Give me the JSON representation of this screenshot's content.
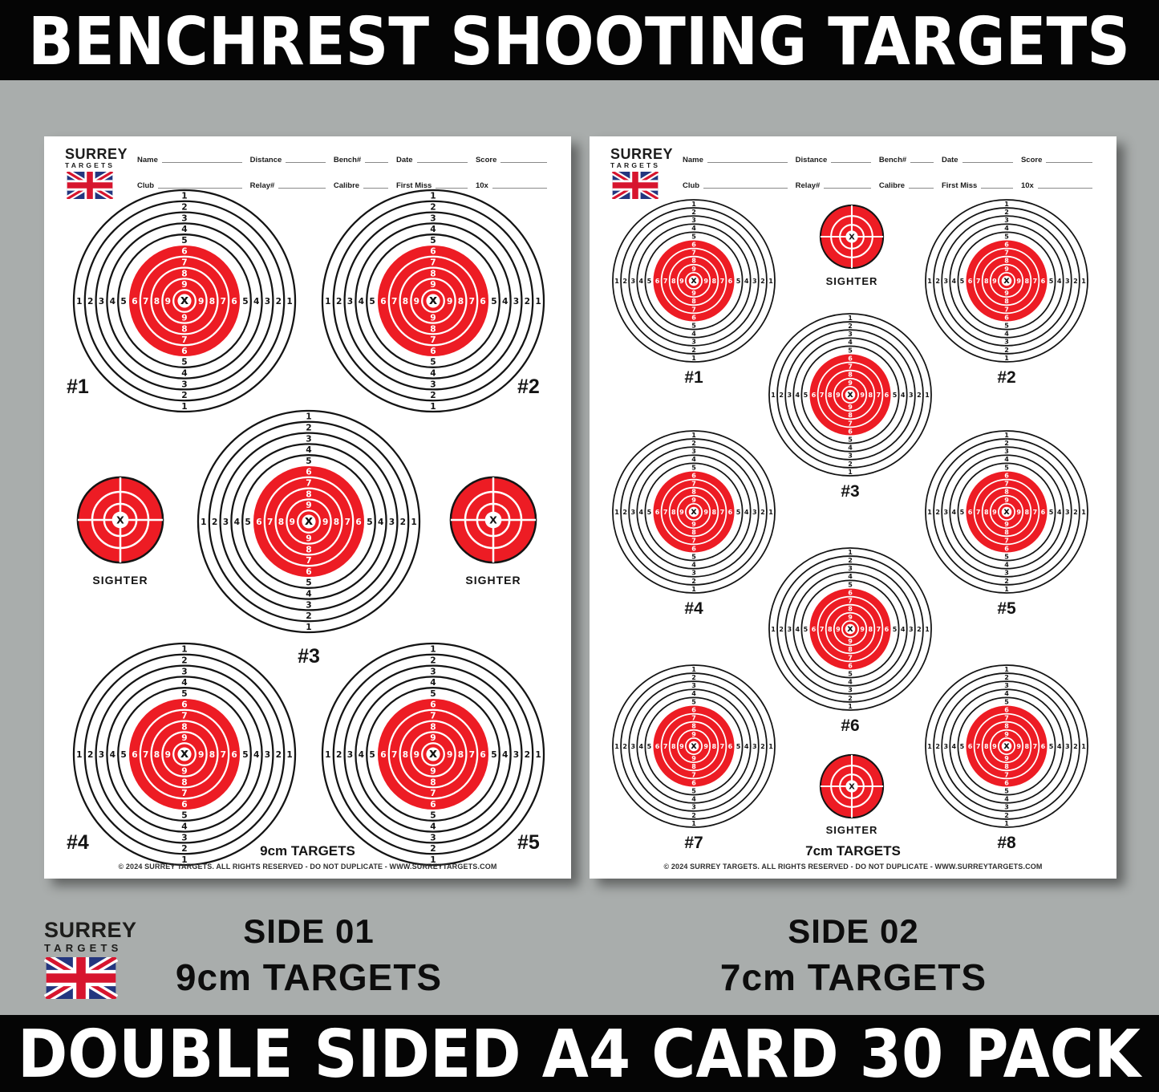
{
  "banners": {
    "top": "BENCHREST SHOOTING TARGETS",
    "bottom": "DOUBLE SIDED A4 CARD 30 PACK"
  },
  "brand": {
    "name_line1": "SURREY",
    "name_line2": "TARGETS"
  },
  "header_fields": {
    "row1": [
      "Name",
      "Distance",
      "Bench#",
      "Date",
      "Score"
    ],
    "row2": [
      "Club",
      "Relay#",
      "Calibre",
      "First Miss",
      "10x"
    ]
  },
  "target_design": {
    "ring_numbers": [
      "1",
      "2",
      "3",
      "4",
      "5",
      "6",
      "7",
      "8",
      "9"
    ],
    "center_mark": "x",
    "sighter_center_mark": "X",
    "sighter_label": "SIGHTER",
    "red": "#ED1C24",
    "ring_black": "#141414",
    "flag_blue": "#23367F",
    "flag_red": "#D7152E"
  },
  "colors": {
    "background_gray": "#a9adac",
    "banner_black": "#050505",
    "sheet_white": "#ffffff"
  },
  "sheets": [
    {
      "side_label": "SIDE 01",
      "size_label": "9cm TARGETS",
      "copyright": "© 2024 SURREY TARGETS. ALL RIGHTS RESERVED - DO NOT DUPLICATE - WWW.SURREYTARGETS.COM",
      "targets": [
        "#1",
        "#2",
        "#3",
        "#4",
        "#5"
      ],
      "sighter_count": 2
    },
    {
      "side_label": "SIDE 02",
      "size_label": "7cm TARGETS",
      "copyright": "© 2024 SURREY TARGETS. ALL RIGHTS RESERVED - DO NOT DUPLICATE - WWW.SURREYTARGETS.COM",
      "targets": [
        "#1",
        "#2",
        "#3",
        "#4",
        "#5",
        "#6",
        "#7",
        "#8"
      ],
      "sighter_count": 2
    }
  ]
}
